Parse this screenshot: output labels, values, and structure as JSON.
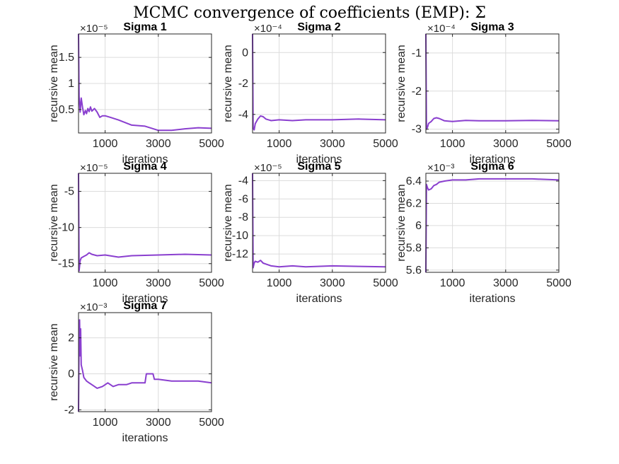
{
  "figure": {
    "title": "MCMC convergence of coefficients (EMP): Σ",
    "line_color": "#8a3fcf"
  },
  "chart_data": [
    {
      "type": "line",
      "title": "Sigma 1",
      "xlabel": "iterations",
      "ylabel": "recursive mean",
      "exponent": "×10⁻⁵",
      "xlim": [
        0,
        5000
      ],
      "ylim": [
        0.05,
        1.95
      ],
      "xticks": [
        1000,
        3000,
        5000
      ],
      "xtick_labels": [
        "1000",
        "3000",
        "5000"
      ],
      "yticks": [
        0.5,
        1,
        1.5
      ],
      "ytick_labels": [
        "0.5",
        "1",
        "1.5"
      ],
      "grid": true,
      "x": [
        0,
        20,
        60,
        100,
        150,
        200,
        260,
        300,
        350,
        400,
        450,
        500,
        600,
        700,
        800,
        900,
        1000,
        1200,
        1500,
        2000,
        2500,
        3000,
        3500,
        4000,
        4500,
        5000
      ],
      "y": [
        1.95,
        0.75,
        0.45,
        0.72,
        0.55,
        0.4,
        0.48,
        0.42,
        0.52,
        0.46,
        0.55,
        0.47,
        0.52,
        0.45,
        0.35,
        0.38,
        0.38,
        0.35,
        0.3,
        0.2,
        0.18,
        0.1,
        0.1,
        0.13,
        0.15,
        0.14
      ]
    },
    {
      "type": "line",
      "title": "Sigma 2",
      "xlabel": "iterations",
      "ylabel": "recursive mean",
      "exponent": "×10⁻⁴",
      "xlim": [
        0,
        5000
      ],
      "ylim": [
        -5.2,
        1.2
      ],
      "xticks": [
        1000,
        3000,
        5000
      ],
      "xtick_labels": [
        "1000",
        "3000",
        "5000"
      ],
      "yticks": [
        -4,
        -2,
        0
      ],
      "ytick_labels": [
        "-4",
        "-2",
        "0"
      ],
      "grid": true,
      "x": [
        0,
        20,
        60,
        100,
        200,
        300,
        400,
        500,
        700,
        1000,
        1500,
        2000,
        3000,
        4000,
        5000
      ],
      "y": [
        1.2,
        -4.9,
        -5.0,
        -4.6,
        -4.3,
        -4.1,
        -4.15,
        -4.3,
        -4.4,
        -4.35,
        -4.4,
        -4.35,
        -4.35,
        -4.3,
        -4.35
      ]
    },
    {
      "type": "line",
      "title": "Sigma 3",
      "xlabel": "iterations",
      "ylabel": "recursive mean",
      "exponent": "×10⁻⁴",
      "xlim": [
        0,
        5000
      ],
      "ylim": [
        -3.1,
        -0.5
      ],
      "xticks": [
        1000,
        3000,
        5000
      ],
      "xtick_labels": [
        "1000",
        "3000",
        "5000"
      ],
      "yticks": [
        -3,
        -2,
        -1
      ],
      "ytick_labels": [
        "-3",
        "-2",
        "-1"
      ],
      "grid": true,
      "x": [
        0,
        20,
        60,
        100,
        200,
        300,
        400,
        500,
        700,
        1000,
        1500,
        2000,
        3000,
        4000,
        5000
      ],
      "y": [
        -0.5,
        -3.0,
        -2.95,
        -2.85,
        -2.8,
        -2.72,
        -2.7,
        -2.72,
        -2.78,
        -2.8,
        -2.77,
        -2.78,
        -2.78,
        -2.77,
        -2.78
      ]
    },
    {
      "type": "line",
      "title": "Sigma 4",
      "xlabel": "iterations",
      "ylabel": "recursive mean",
      "exponent": "×10⁻⁵",
      "xlim": [
        0,
        5000
      ],
      "ylim": [
        -16.2,
        -2.5
      ],
      "xticks": [
        1000,
        3000,
        5000
      ],
      "xtick_labels": [
        "1000",
        "3000",
        "5000"
      ],
      "yticks": [
        -15,
        -10,
        -5
      ],
      "ytick_labels": [
        "-15",
        "-10",
        "-5"
      ],
      "grid": true,
      "x": [
        0,
        20,
        60,
        100,
        200,
        300,
        400,
        500,
        700,
        1000,
        1500,
        2000,
        3000,
        4000,
        5000
      ],
      "y": [
        -2.5,
        -16.0,
        -14.6,
        -14.2,
        -14.0,
        -13.8,
        -13.5,
        -13.7,
        -13.9,
        -13.8,
        -14.1,
        -13.9,
        -13.8,
        -13.7,
        -13.8
      ]
    },
    {
      "type": "line",
      "title": "Sigma 5",
      "xlabel": "iterations",
      "ylabel": "recursive mean",
      "exponent": "×10⁻⁵",
      "xlim": [
        0,
        5000
      ],
      "ylim": [
        -14.0,
        -3.2
      ],
      "xticks": [
        1000,
        3000,
        5000
      ],
      "xtick_labels": [
        "1000",
        "3000",
        "5000"
      ],
      "yticks": [
        -12,
        -10,
        -8,
        -6,
        -4
      ],
      "ytick_labels": [
        "-12",
        "-10",
        "-8",
        "-6",
        "-4"
      ],
      "grid": true,
      "x": [
        0,
        20,
        60,
        100,
        200,
        300,
        400,
        500,
        700,
        1000,
        1500,
        2000,
        3000,
        4000,
        5000
      ],
      "y": [
        -3.2,
        -13.5,
        -13.0,
        -12.8,
        -12.9,
        -12.7,
        -13.0,
        -13.1,
        -13.3,
        -13.4,
        -13.3,
        -13.4,
        -13.3,
        -13.35,
        -13.4
      ]
    },
    {
      "type": "line",
      "title": "Sigma 6",
      "xlabel": "iterations",
      "ylabel": "recursive mean",
      "exponent": "×10⁻³",
      "xlim": [
        0,
        5000
      ],
      "ylim": [
        5.58,
        6.47
      ],
      "xticks": [
        1000,
        3000,
        5000
      ],
      "xtick_labels": [
        "1000",
        "3000",
        "5000"
      ],
      "yticks": [
        5.6,
        5.8,
        6,
        6.2,
        6.4
      ],
      "ytick_labels": [
        "5.6",
        "5.8",
        "6",
        "6.2",
        "6.4"
      ],
      "grid": true,
      "x": [
        0,
        20,
        60,
        100,
        200,
        300,
        400,
        500,
        700,
        1000,
        1500,
        2000,
        3000,
        4000,
        5000
      ],
      "y": [
        5.58,
        6.37,
        6.34,
        6.32,
        6.33,
        6.36,
        6.37,
        6.39,
        6.4,
        6.41,
        6.41,
        6.42,
        6.42,
        6.42,
        6.41
      ]
    },
    {
      "type": "line",
      "title": "Sigma 7",
      "xlabel": "iterations",
      "ylabel": "recursive mean",
      "exponent": "×10⁻³",
      "xlim": [
        0,
        5000
      ],
      "ylim": [
        -2.1,
        3.4
      ],
      "xticks": [
        1000,
        3000,
        5000
      ],
      "xtick_labels": [
        "1000",
        "3000",
        "5000"
      ],
      "yticks": [
        -2,
        0,
        2
      ],
      "ytick_labels": [
        "-2",
        "0",
        "2"
      ],
      "grid": true,
      "x": [
        0,
        20,
        40,
        60,
        80,
        100,
        150,
        200,
        300,
        400,
        500,
        700,
        900,
        1100,
        1300,
        1500,
        1800,
        2000,
        2200,
        2500,
        2550,
        2600,
        2800,
        2850,
        3000,
        3500,
        4000,
        4500,
        5000
      ],
      "y": [
        -2.1,
        1.8,
        3.0,
        1.0,
        2.5,
        0.5,
        0.2,
        -0.2,
        -0.4,
        -0.5,
        -0.6,
        -0.8,
        -0.7,
        -0.5,
        -0.7,
        -0.6,
        -0.6,
        -0.5,
        -0.5,
        -0.5,
        0.0,
        0.0,
        0.0,
        -0.3,
        -0.3,
        -0.4,
        -0.4,
        -0.4,
        -0.5
      ]
    }
  ]
}
